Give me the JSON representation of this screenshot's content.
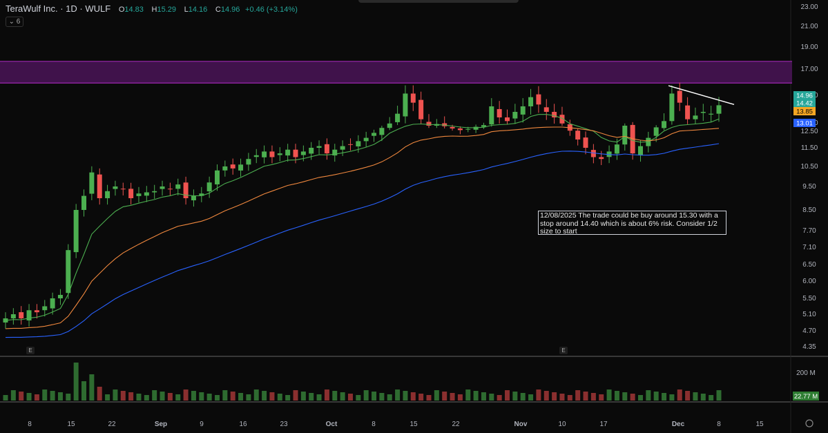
{
  "header": {
    "title": "TeraWulf Inc. · 1D · WULF",
    "o_label": "O",
    "o": "14.83",
    "h_label": "H",
    "h": "15.29",
    "l_label": "L",
    "l": "14.16",
    "c_label": "C",
    "c": "14.96",
    "change": "+0.46 (+3.14%)",
    "indicator_count": "6"
  },
  "note": "12/08/2025 The trade could be buy around 15.30 with a stop around 14.40 which is about 6% risk. Consider 1/2 size to start",
  "earnings_label": "E",
  "chart_data": {
    "type": "candlestick",
    "yticks": [
      "23.00",
      "21.00",
      "19.00",
      "17.00",
      "15.50",
      "14.00",
      "12.50",
      "11.50",
      "10.50",
      "9.50",
      "8.50",
      "7.70",
      "7.10",
      "6.50",
      "6.00",
      "5.50",
      "5.10",
      "4.70",
      "4.35"
    ],
    "xticks": [
      "8",
      "15",
      "22",
      "Sep",
      "9",
      "16",
      "23",
      "Oct",
      "8",
      "15",
      "22",
      "Nov",
      "10",
      "17",
      "Dec",
      "8",
      "15"
    ],
    "price_badges": [
      {
        "value": "14.96",
        "color": "#26a69a"
      },
      {
        "value": "14.42",
        "color": "#26a69a"
      },
      {
        "value": "13.85",
        "color": "#f5a623"
      },
      {
        "value": "13.01",
        "color": "#2962ff"
      }
    ],
    "volume_labels": [
      "200 M",
      "22.77 M"
    ],
    "resistance_zone": [
      16.2,
      17.7
    ],
    "colors": {
      "up": "#4caf50",
      "down": "#ef5350",
      "ema_fast": "#4caf50",
      "ema_mid": "#f0883e",
      "ema_slow": "#2962ff",
      "zone": "#9c27b0"
    }
  }
}
